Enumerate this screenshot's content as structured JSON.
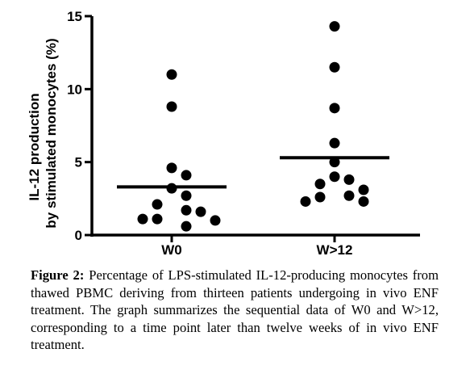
{
  "chart_data": {
    "type": "scatter",
    "ylabel_line1": "IL-12 production",
    "ylabel_line2": "by stimulated monocytes (%)",
    "xlabel": "",
    "ylim": [
      0,
      15
    ],
    "yticks": [
      0,
      5,
      10,
      15
    ],
    "categories": [
      "W0",
      "W>12"
    ],
    "series": [
      {
        "category": "W0",
        "values": [
          11.0,
          8.8,
          4.6,
          4.1,
          3.2,
          2.7,
          2.1,
          1.7,
          1.6,
          1.1,
          1.1,
          1.0,
          0.6
        ],
        "mean": 3.3
      },
      {
        "category": "W>12",
        "values": [
          14.3,
          11.5,
          8.7,
          6.3,
          5.0,
          4.0,
          3.8,
          3.5,
          3.1,
          2.7,
          2.6,
          2.3,
          2.3
        ],
        "mean": 5.3
      }
    ],
    "marker_color": "#000000",
    "grid": false,
    "legend": "none"
  },
  "caption": {
    "label": "Figure 2:",
    "text": "Percentage of LPS-stimulated IL-12-producing monocytes from thawed PBMC deriving from thirteen patients undergoing in vivo ENF treatment. The graph summarizes the sequential data of W0 and W>12, corresponding to a time point later than twelve weeks of in vivo ENF treatment."
  }
}
